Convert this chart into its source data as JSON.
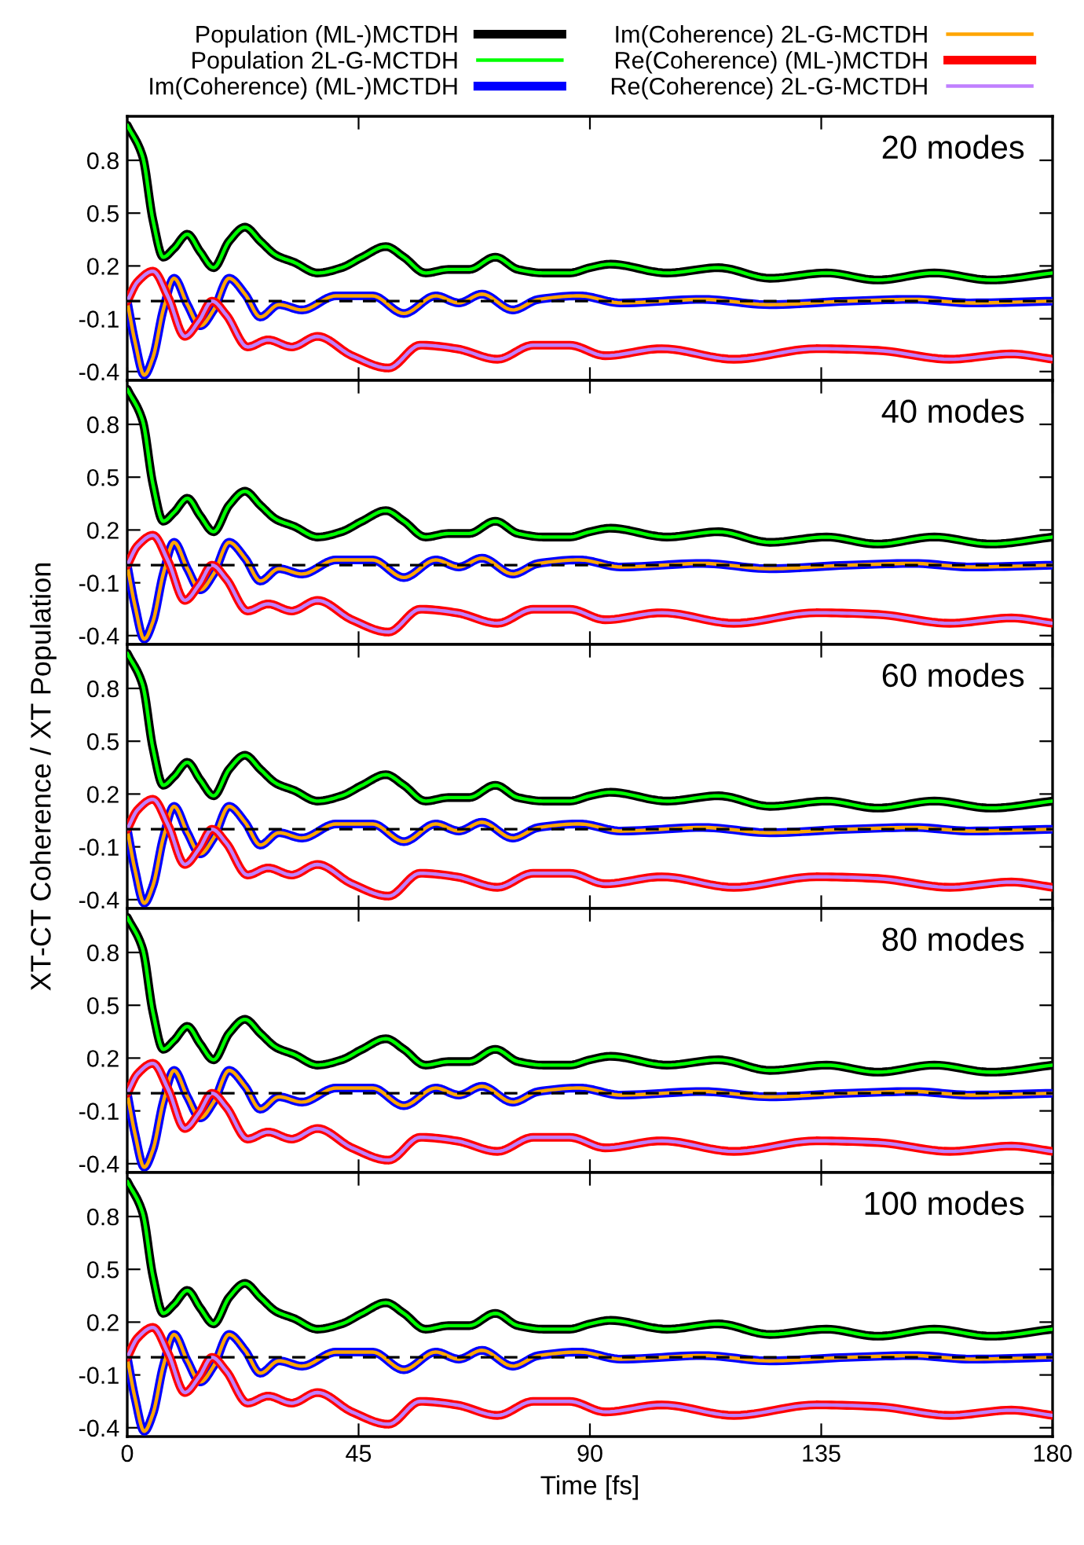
{
  "chart_data": [
    {
      "type": "line",
      "annotations": [
        "20 modes"
      ],
      "legend": "top",
      "tick_labels": "y",
      "grid": false,
      "line_style": "solid",
      "marker": "none",
      "xlim": [
        0,
        180
      ],
      "xticks": [
        0,
        45,
        90,
        135,
        180
      ],
      "ylim": [
        -0.45,
        1.05
      ],
      "yticks": [
        -0.4,
        -0.1,
        0.2,
        0.5,
        0.8
      ],
      "ref_lines": [
        {
          "axis": "y",
          "value": 0,
          "color": "#000000",
          "line_style": "dashed"
        }
      ],
      "series": [
        {
          "name": "Population (ML-)MCTDH",
          "color": "#000000",
          "x": [
            0,
            3,
            5,
            7,
            9.1,
            11.7,
            14.2,
            16.8,
            19.8,
            22.9,
            25.9,
            29,
            32.5,
            37,
            41.7,
            45.7,
            50.3,
            53.8,
            58,
            62.5,
            66.5,
            71.6,
            76,
            81,
            86,
            90,
            94,
            105,
            115,
            125,
            136,
            146,
            157,
            168,
            180
          ],
          "values": [
            1.0,
            0.82,
            0.46,
            0.25,
            0.3,
            0.38,
            0.28,
            0.19,
            0.34,
            0.42,
            0.34,
            0.26,
            0.22,
            0.16,
            0.19,
            0.25,
            0.31,
            0.25,
            0.16,
            0.18,
            0.18,
            0.25,
            0.18,
            0.16,
            0.16,
            0.19,
            0.21,
            0.16,
            0.19,
            0.13,
            0.16,
            0.12,
            0.16,
            0.12,
            0.16
          ]
        },
        {
          "name": "Population 2L-G-MCTDH",
          "color": "#00ff00",
          "x": [
            0,
            3,
            5,
            7,
            9.1,
            11.7,
            14.2,
            16.8,
            19.8,
            22.9,
            25.9,
            29,
            32.5,
            37,
            41.7,
            45.7,
            50.3,
            53.8,
            58,
            62.5,
            66.5,
            71.6,
            76,
            81,
            86,
            90,
            94,
            105,
            115,
            125,
            136,
            146,
            157,
            168,
            180
          ],
          "values": [
            1.0,
            0.82,
            0.46,
            0.25,
            0.3,
            0.38,
            0.28,
            0.19,
            0.34,
            0.42,
            0.34,
            0.26,
            0.22,
            0.16,
            0.19,
            0.25,
            0.31,
            0.25,
            0.16,
            0.18,
            0.18,
            0.25,
            0.18,
            0.16,
            0.16,
            0.19,
            0.21,
            0.16,
            0.19,
            0.13,
            0.16,
            0.12,
            0.16,
            0.12,
            0.16
          ]
        },
        {
          "name": "Im(Coherence) (ML-)MCTDH",
          "color": "#0000ff",
          "x": [
            0,
            1.5,
            3.3,
            5,
            7,
            9.1,
            11.7,
            14.2,
            16.8,
            19.8,
            22.9,
            25.9,
            29.5,
            34,
            40.6,
            47.7,
            53.8,
            60,
            64.5,
            69,
            75,
            80,
            88,
            96,
            112,
            125,
            140,
            153,
            164,
            180
          ],
          "values": [
            0,
            -0.23,
            -0.42,
            -0.32,
            -0.05,
            0.13,
            -0.02,
            -0.14,
            -0.05,
            0.13,
            0.04,
            -0.09,
            -0.02,
            -0.05,
            0.03,
            0.03,
            -0.07,
            0.03,
            -0.01,
            0.04,
            -0.05,
            0.01,
            0.03,
            -0.01,
            0.01,
            -0.02,
            0.0,
            0.01,
            -0.01,
            0.0
          ]
        },
        {
          "name": "Im(Coherence) 2L-G-MCTDH",
          "color": "#ffa500",
          "x": [
            0,
            1.5,
            3.3,
            5,
            7,
            9.1,
            11.7,
            14.2,
            16.8,
            19.8,
            22.9,
            25.9,
            29.5,
            34,
            40.6,
            47.7,
            53.8,
            60,
            64.5,
            69,
            75,
            80,
            88,
            96,
            112,
            125,
            140,
            153,
            164,
            180
          ],
          "values": [
            0,
            -0.23,
            -0.42,
            -0.32,
            -0.05,
            0.13,
            -0.02,
            -0.14,
            -0.05,
            0.13,
            0.04,
            -0.09,
            -0.02,
            -0.05,
            0.03,
            0.03,
            -0.07,
            0.03,
            -0.01,
            0.04,
            -0.05,
            0.01,
            0.03,
            -0.01,
            0.01,
            -0.02,
            0.0,
            0.01,
            -0.01,
            0.0
          ]
        },
        {
          "name": "Re(Coherence) (ML-)MCTDH",
          "color": "#ff0000",
          "x": [
            0,
            2,
            5,
            8,
            11.2,
            14,
            16.5,
            19.3,
            23.4,
            27.4,
            32,
            37,
            43.7,
            50.8,
            57,
            64,
            72,
            79,
            86,
            93,
            104,
            118,
            134,
            146,
            160,
            172,
            180
          ],
          "values": [
            0,
            0.11,
            0.17,
            0.02,
            -0.2,
            -0.11,
            0.0,
            -0.08,
            -0.26,
            -0.22,
            -0.26,
            -0.2,
            -0.31,
            -0.38,
            -0.25,
            -0.27,
            -0.33,
            -0.25,
            -0.25,
            -0.31,
            -0.27,
            -0.33,
            -0.27,
            -0.28,
            -0.33,
            -0.3,
            -0.33
          ]
        },
        {
          "name": "Re(Coherence) 2L-G-MCTDH",
          "color": "#c080ff",
          "x": [
            0,
            2,
            5,
            8,
            11.2,
            14,
            16.5,
            19.3,
            23.4,
            27.4,
            32,
            37,
            43.7,
            50.8,
            57,
            64,
            72,
            79,
            86,
            93,
            104,
            118,
            134,
            146,
            160,
            172,
            180
          ],
          "values": [
            0,
            0.11,
            0.17,
            0.02,
            -0.2,
            -0.11,
            0.0,
            -0.08,
            -0.26,
            -0.22,
            -0.26,
            -0.2,
            -0.31,
            -0.38,
            -0.25,
            -0.27,
            -0.33,
            -0.25,
            -0.25,
            -0.31,
            -0.27,
            -0.33,
            -0.27,
            -0.28,
            -0.33,
            -0.3,
            -0.33
          ]
        }
      ]
    },
    {
      "type": "line",
      "annotations": [
        "40 modes"
      ],
      "tick_labels": "y",
      "grid": false,
      "line_style": "solid",
      "marker": "none",
      "xlim": [
        0,
        180
      ],
      "xticks": [
        0,
        45,
        90,
        135,
        180
      ],
      "ylim": [
        -0.45,
        1.05
      ],
      "yticks": [
        -0.4,
        -0.1,
        0.2,
        0.5,
        0.8
      ],
      "ref_lines": [
        {
          "axis": "y",
          "value": 0,
          "color": "#000000",
          "line_style": "dashed"
        }
      ],
      "series": [
        {
          "color": "#000000",
          "x": [
            0,
            3,
            5,
            7,
            9.1,
            11.7,
            14.2,
            16.8,
            19.8,
            22.9,
            25.9,
            29,
            32.5,
            37,
            41.7,
            45.7,
            50.3,
            53.8,
            58,
            62.5,
            66.5,
            71.6,
            76,
            81,
            86,
            90,
            94,
            105,
            115,
            125,
            136,
            146,
            157,
            168,
            180
          ],
          "values": [
            1.0,
            0.82,
            0.46,
            0.25,
            0.3,
            0.38,
            0.28,
            0.19,
            0.34,
            0.42,
            0.34,
            0.26,
            0.22,
            0.16,
            0.19,
            0.25,
            0.31,
            0.25,
            0.16,
            0.18,
            0.18,
            0.25,
            0.18,
            0.16,
            0.16,
            0.19,
            0.21,
            0.16,
            0.19,
            0.13,
            0.16,
            0.12,
            0.16,
            0.12,
            0.16
          ]
        },
        {
          "color": "#00ff00",
          "x": [
            0,
            3,
            5,
            7,
            9.1,
            11.7,
            14.2,
            16.8,
            19.8,
            22.9,
            25.9,
            29,
            32.5,
            37,
            41.7,
            45.7,
            50.3,
            53.8,
            58,
            62.5,
            66.5,
            71.6,
            76,
            81,
            86,
            90,
            94,
            105,
            115,
            125,
            136,
            146,
            157,
            168,
            180
          ],
          "values": [
            1.0,
            0.82,
            0.46,
            0.25,
            0.3,
            0.38,
            0.28,
            0.19,
            0.34,
            0.42,
            0.34,
            0.26,
            0.22,
            0.16,
            0.19,
            0.25,
            0.31,
            0.25,
            0.16,
            0.18,
            0.18,
            0.25,
            0.18,
            0.16,
            0.16,
            0.19,
            0.21,
            0.16,
            0.19,
            0.13,
            0.16,
            0.12,
            0.16,
            0.12,
            0.16
          ]
        },
        {
          "color": "#0000ff",
          "x": [
            0,
            1.5,
            3.3,
            5,
            7,
            9.1,
            11.7,
            14.2,
            16.8,
            19.8,
            22.9,
            25.9,
            29.5,
            34,
            40.6,
            47.7,
            53.8,
            60,
            64.5,
            69,
            75,
            80,
            88,
            96,
            112,
            125,
            140,
            153,
            164,
            180
          ],
          "values": [
            0,
            -0.23,
            -0.42,
            -0.32,
            -0.05,
            0.13,
            -0.02,
            -0.14,
            -0.05,
            0.13,
            0.04,
            -0.09,
            -0.02,
            -0.05,
            0.03,
            0.03,
            -0.07,
            0.03,
            -0.01,
            0.04,
            -0.05,
            0.01,
            0.03,
            -0.01,
            0.01,
            -0.02,
            0.0,
            0.01,
            -0.01,
            0.0
          ]
        },
        {
          "color": "#ffa500",
          "x": [
            0,
            1.5,
            3.3,
            5,
            7,
            9.1,
            11.7,
            14.2,
            16.8,
            19.8,
            22.9,
            25.9,
            29.5,
            34,
            40.6,
            47.7,
            53.8,
            60,
            64.5,
            69,
            75,
            80,
            88,
            96,
            112,
            125,
            140,
            153,
            164,
            180
          ],
          "values": [
            0,
            -0.23,
            -0.42,
            -0.32,
            -0.05,
            0.13,
            -0.02,
            -0.14,
            -0.05,
            0.13,
            0.04,
            -0.09,
            -0.02,
            -0.05,
            0.03,
            0.03,
            -0.07,
            0.03,
            -0.01,
            0.04,
            -0.05,
            0.01,
            0.03,
            -0.01,
            0.01,
            -0.02,
            0.0,
            0.01,
            -0.01,
            0.0
          ]
        },
        {
          "color": "#ff0000",
          "x": [
            0,
            2,
            5,
            8,
            11.2,
            14,
            16.5,
            19.3,
            23.4,
            27.4,
            32,
            37,
            43.7,
            50.8,
            57,
            64,
            72,
            79,
            86,
            93,
            104,
            118,
            134,
            146,
            160,
            172,
            180
          ],
          "values": [
            0,
            0.11,
            0.17,
            0.02,
            -0.2,
            -0.11,
            0.0,
            -0.08,
            -0.26,
            -0.22,
            -0.26,
            -0.2,
            -0.31,
            -0.38,
            -0.25,
            -0.27,
            -0.33,
            -0.25,
            -0.25,
            -0.31,
            -0.27,
            -0.33,
            -0.27,
            -0.28,
            -0.33,
            -0.3,
            -0.33
          ]
        },
        {
          "color": "#c080ff",
          "x": [
            0,
            2,
            5,
            8,
            11.2,
            14,
            16.5,
            19.3,
            23.4,
            27.4,
            32,
            37,
            43.7,
            50.8,
            57,
            64,
            72,
            79,
            86,
            93,
            104,
            118,
            134,
            146,
            160,
            172,
            180
          ],
          "values": [
            0,
            0.11,
            0.17,
            0.02,
            -0.2,
            -0.11,
            0.0,
            -0.08,
            -0.26,
            -0.22,
            -0.26,
            -0.2,
            -0.31,
            -0.38,
            -0.25,
            -0.27,
            -0.33,
            -0.25,
            -0.25,
            -0.31,
            -0.27,
            -0.33,
            -0.27,
            -0.28,
            -0.33,
            -0.3,
            -0.33
          ]
        }
      ]
    },
    {
      "type": "line",
      "annotations": [
        "60 modes"
      ],
      "ylabel": "XT-CT Coherence / XT Population",
      "tick_labels": "y",
      "grid": false,
      "line_style": "solid",
      "marker": "none",
      "xlim": [
        0,
        180
      ],
      "xticks": [
        0,
        45,
        90,
        135,
        180
      ],
      "ylim": [
        -0.45,
        1.05
      ],
      "yticks": [
        -0.4,
        -0.1,
        0.2,
        0.5,
        0.8
      ],
      "ref_lines": [
        {
          "axis": "y",
          "value": 0,
          "color": "#000000",
          "line_style": "dashed"
        }
      ],
      "series": [
        {
          "color": "#000000",
          "x": [
            0,
            3,
            5,
            7,
            9.1,
            11.7,
            14.2,
            16.8,
            19.8,
            22.9,
            25.9,
            29,
            32.5,
            37,
            41.7,
            45.7,
            50.3,
            53.8,
            58,
            62.5,
            66.5,
            71.6,
            76,
            81,
            86,
            90,
            94,
            105,
            115,
            125,
            136,
            146,
            157,
            168,
            180
          ],
          "values": [
            1.0,
            0.82,
            0.46,
            0.25,
            0.3,
            0.38,
            0.28,
            0.19,
            0.34,
            0.42,
            0.34,
            0.26,
            0.22,
            0.16,
            0.19,
            0.25,
            0.31,
            0.25,
            0.16,
            0.18,
            0.18,
            0.25,
            0.18,
            0.16,
            0.16,
            0.19,
            0.21,
            0.16,
            0.19,
            0.13,
            0.16,
            0.12,
            0.16,
            0.12,
            0.16
          ]
        },
        {
          "color": "#00ff00",
          "x": [
            0,
            3,
            5,
            7,
            9.1,
            11.7,
            14.2,
            16.8,
            19.8,
            22.9,
            25.9,
            29,
            32.5,
            37,
            41.7,
            45.7,
            50.3,
            53.8,
            58,
            62.5,
            66.5,
            71.6,
            76,
            81,
            86,
            90,
            94,
            105,
            115,
            125,
            136,
            146,
            157,
            168,
            180
          ],
          "values": [
            1.0,
            0.82,
            0.46,
            0.25,
            0.3,
            0.38,
            0.28,
            0.19,
            0.34,
            0.42,
            0.34,
            0.26,
            0.22,
            0.16,
            0.19,
            0.25,
            0.31,
            0.25,
            0.16,
            0.18,
            0.18,
            0.25,
            0.18,
            0.16,
            0.16,
            0.19,
            0.21,
            0.16,
            0.19,
            0.13,
            0.16,
            0.12,
            0.16,
            0.12,
            0.16
          ]
        },
        {
          "color": "#0000ff",
          "x": [
            0,
            1.5,
            3.3,
            5,
            7,
            9.1,
            11.7,
            14.2,
            16.8,
            19.8,
            22.9,
            25.9,
            29.5,
            34,
            40.6,
            47.7,
            53.8,
            60,
            64.5,
            69,
            75,
            80,
            88,
            96,
            112,
            125,
            140,
            153,
            164,
            180
          ],
          "values": [
            0,
            -0.23,
            -0.42,
            -0.32,
            -0.05,
            0.13,
            -0.02,
            -0.14,
            -0.05,
            0.13,
            0.04,
            -0.09,
            -0.02,
            -0.05,
            0.03,
            0.03,
            -0.07,
            0.03,
            -0.01,
            0.04,
            -0.05,
            0.01,
            0.03,
            -0.01,
            0.01,
            -0.02,
            0.0,
            0.01,
            -0.01,
            0.0
          ]
        },
        {
          "color": "#ffa500",
          "x": [
            0,
            1.5,
            3.3,
            5,
            7,
            9.1,
            11.7,
            14.2,
            16.8,
            19.8,
            22.9,
            25.9,
            29.5,
            34,
            40.6,
            47.7,
            53.8,
            60,
            64.5,
            69,
            75,
            80,
            88,
            96,
            112,
            125,
            140,
            153,
            164,
            180
          ],
          "values": [
            0,
            -0.23,
            -0.42,
            -0.32,
            -0.05,
            0.13,
            -0.02,
            -0.14,
            -0.05,
            0.13,
            0.04,
            -0.09,
            -0.02,
            -0.05,
            0.03,
            0.03,
            -0.07,
            0.03,
            -0.01,
            0.04,
            -0.05,
            0.01,
            0.03,
            -0.01,
            0.01,
            -0.02,
            0.0,
            0.01,
            -0.01,
            0.0
          ]
        },
        {
          "color": "#ff0000",
          "x": [
            0,
            2,
            5,
            8,
            11.2,
            14,
            16.5,
            19.3,
            23.4,
            27.4,
            32,
            37,
            43.7,
            50.8,
            57,
            64,
            72,
            79,
            86,
            93,
            104,
            118,
            134,
            146,
            160,
            172,
            180
          ],
          "values": [
            0,
            0.11,
            0.17,
            0.02,
            -0.2,
            -0.11,
            0.0,
            -0.08,
            -0.26,
            -0.22,
            -0.26,
            -0.2,
            -0.31,
            -0.38,
            -0.25,
            -0.27,
            -0.33,
            -0.25,
            -0.25,
            -0.31,
            -0.27,
            -0.33,
            -0.27,
            -0.28,
            -0.33,
            -0.3,
            -0.33
          ]
        },
        {
          "color": "#c080ff",
          "x": [
            0,
            2,
            5,
            8,
            11.2,
            14,
            16.5,
            19.3,
            23.4,
            27.4,
            32,
            37,
            43.7,
            50.8,
            57,
            64,
            72,
            79,
            86,
            93,
            104,
            118,
            134,
            146,
            160,
            172,
            180
          ],
          "values": [
            0,
            0.11,
            0.17,
            0.02,
            -0.2,
            -0.11,
            0.0,
            -0.08,
            -0.26,
            -0.22,
            -0.26,
            -0.2,
            -0.31,
            -0.38,
            -0.25,
            -0.27,
            -0.33,
            -0.25,
            -0.25,
            -0.31,
            -0.27,
            -0.33,
            -0.27,
            -0.28,
            -0.33,
            -0.3,
            -0.33
          ]
        }
      ]
    },
    {
      "type": "line",
      "annotations": [
        "80 modes"
      ],
      "tick_labels": "y",
      "grid": false,
      "line_style": "solid",
      "marker": "none",
      "xlim": [
        0,
        180
      ],
      "xticks": [
        0,
        45,
        90,
        135,
        180
      ],
      "ylim": [
        -0.45,
        1.05
      ],
      "yticks": [
        -0.4,
        -0.1,
        0.2,
        0.5,
        0.8
      ],
      "ref_lines": [
        {
          "axis": "y",
          "value": 0,
          "color": "#000000",
          "line_style": "dashed"
        }
      ],
      "series": [
        {
          "color": "#000000",
          "x": [
            0,
            3,
            5,
            7,
            9.1,
            11.7,
            14.2,
            16.8,
            19.8,
            22.9,
            25.9,
            29,
            32.5,
            37,
            41.7,
            45.7,
            50.3,
            53.8,
            58,
            62.5,
            66.5,
            71.6,
            76,
            81,
            86,
            90,
            94,
            105,
            115,
            125,
            136,
            146,
            157,
            168,
            180
          ],
          "values": [
            1.0,
            0.82,
            0.46,
            0.25,
            0.3,
            0.38,
            0.28,
            0.19,
            0.34,
            0.42,
            0.34,
            0.26,
            0.22,
            0.16,
            0.19,
            0.25,
            0.31,
            0.25,
            0.16,
            0.18,
            0.18,
            0.25,
            0.18,
            0.16,
            0.16,
            0.19,
            0.21,
            0.16,
            0.19,
            0.13,
            0.16,
            0.12,
            0.16,
            0.12,
            0.16
          ]
        },
        {
          "color": "#00ff00",
          "x": [
            0,
            3,
            5,
            7,
            9.1,
            11.7,
            14.2,
            16.8,
            19.8,
            22.9,
            25.9,
            29,
            32.5,
            37,
            41.7,
            45.7,
            50.3,
            53.8,
            58,
            62.5,
            66.5,
            71.6,
            76,
            81,
            86,
            90,
            94,
            105,
            115,
            125,
            136,
            146,
            157,
            168,
            180
          ],
          "values": [
            1.0,
            0.82,
            0.46,
            0.25,
            0.3,
            0.38,
            0.28,
            0.19,
            0.34,
            0.42,
            0.34,
            0.26,
            0.22,
            0.16,
            0.19,
            0.25,
            0.31,
            0.25,
            0.16,
            0.18,
            0.18,
            0.25,
            0.18,
            0.16,
            0.16,
            0.19,
            0.21,
            0.16,
            0.19,
            0.13,
            0.16,
            0.12,
            0.16,
            0.12,
            0.16
          ]
        },
        {
          "color": "#0000ff",
          "x": [
            0,
            1.5,
            3.3,
            5,
            7,
            9.1,
            11.7,
            14.2,
            16.8,
            19.8,
            22.9,
            25.9,
            29.5,
            34,
            40.6,
            47.7,
            53.8,
            60,
            64.5,
            69,
            75,
            80,
            88,
            96,
            112,
            125,
            140,
            153,
            164,
            180
          ],
          "values": [
            0,
            -0.23,
            -0.42,
            -0.32,
            -0.05,
            0.13,
            -0.02,
            -0.14,
            -0.05,
            0.13,
            0.04,
            -0.09,
            -0.02,
            -0.05,
            0.03,
            0.03,
            -0.07,
            0.03,
            -0.01,
            0.04,
            -0.05,
            0.01,
            0.03,
            -0.01,
            0.01,
            -0.02,
            0.0,
            0.01,
            -0.01,
            0.0
          ]
        },
        {
          "color": "#ffa500",
          "x": [
            0,
            1.5,
            3.3,
            5,
            7,
            9.1,
            11.7,
            14.2,
            16.8,
            19.8,
            22.9,
            25.9,
            29.5,
            34,
            40.6,
            47.7,
            53.8,
            60,
            64.5,
            69,
            75,
            80,
            88,
            96,
            112,
            125,
            140,
            153,
            164,
            180
          ],
          "values": [
            0,
            -0.23,
            -0.42,
            -0.32,
            -0.05,
            0.13,
            -0.02,
            -0.14,
            -0.05,
            0.13,
            0.04,
            -0.09,
            -0.02,
            -0.05,
            0.03,
            0.03,
            -0.07,
            0.03,
            -0.01,
            0.04,
            -0.05,
            0.01,
            0.03,
            -0.01,
            0.01,
            -0.02,
            0.0,
            0.01,
            -0.01,
            0.0
          ]
        },
        {
          "color": "#ff0000",
          "x": [
            0,
            2,
            5,
            8,
            11.2,
            14,
            16.5,
            19.3,
            23.4,
            27.4,
            32,
            37,
            43.7,
            50.8,
            57,
            64,
            72,
            79,
            86,
            93,
            104,
            118,
            134,
            146,
            160,
            172,
            180
          ],
          "values": [
            0,
            0.11,
            0.17,
            0.02,
            -0.2,
            -0.11,
            0.0,
            -0.08,
            -0.26,
            -0.22,
            -0.26,
            -0.2,
            -0.31,
            -0.38,
            -0.25,
            -0.27,
            -0.33,
            -0.25,
            -0.25,
            -0.31,
            -0.27,
            -0.33,
            -0.27,
            -0.28,
            -0.33,
            -0.3,
            -0.33
          ]
        },
        {
          "color": "#c080ff",
          "x": [
            0,
            2,
            5,
            8,
            11.2,
            14,
            16.5,
            19.3,
            23.4,
            27.4,
            32,
            37,
            43.7,
            50.8,
            57,
            64,
            72,
            79,
            86,
            93,
            104,
            118,
            134,
            146,
            160,
            172,
            180
          ],
          "values": [
            0,
            0.11,
            0.17,
            0.02,
            -0.2,
            -0.11,
            0.0,
            -0.08,
            -0.26,
            -0.22,
            -0.26,
            -0.2,
            -0.31,
            -0.38,
            -0.25,
            -0.27,
            -0.33,
            -0.25,
            -0.25,
            -0.31,
            -0.27,
            -0.33,
            -0.27,
            -0.28,
            -0.33,
            -0.3,
            -0.33
          ]
        }
      ]
    },
    {
      "type": "line",
      "annotations": [
        "100 modes"
      ],
      "xlabel": "Time [fs]",
      "grid": false,
      "line_style": "solid",
      "marker": "none",
      "xlim": [
        0,
        180
      ],
      "xticks": [
        0,
        45,
        90,
        135,
        180
      ],
      "ylim": [
        -0.45,
        1.05
      ],
      "yticks": [
        -0.4,
        -0.1,
        0.2,
        0.5,
        0.8
      ],
      "ref_lines": [
        {
          "axis": "y",
          "value": 0,
          "color": "#000000",
          "line_style": "dashed"
        }
      ],
      "series": [
        {
          "color": "#000000",
          "x": [
            0,
            3,
            5,
            7,
            9.1,
            11.7,
            14.2,
            16.8,
            19.8,
            22.9,
            25.9,
            29,
            32.5,
            37,
            41.7,
            45.7,
            50.3,
            53.8,
            58,
            62.5,
            66.5,
            71.6,
            76,
            81,
            86,
            90,
            94,
            105,
            115,
            125,
            136,
            146,
            157,
            168,
            180
          ],
          "values": [
            1.0,
            0.82,
            0.46,
            0.25,
            0.3,
            0.38,
            0.28,
            0.19,
            0.34,
            0.42,
            0.34,
            0.26,
            0.22,
            0.16,
            0.19,
            0.25,
            0.31,
            0.25,
            0.16,
            0.18,
            0.18,
            0.25,
            0.18,
            0.16,
            0.16,
            0.19,
            0.21,
            0.16,
            0.19,
            0.13,
            0.16,
            0.12,
            0.16,
            0.12,
            0.16
          ]
        },
        {
          "color": "#00ff00",
          "x": [
            0,
            3,
            5,
            7,
            9.1,
            11.7,
            14.2,
            16.8,
            19.8,
            22.9,
            25.9,
            29,
            32.5,
            37,
            41.7,
            45.7,
            50.3,
            53.8,
            58,
            62.5,
            66.5,
            71.6,
            76,
            81,
            86,
            90,
            94,
            105,
            115,
            125,
            136,
            146,
            157,
            168,
            180
          ],
          "values": [
            1.0,
            0.82,
            0.46,
            0.25,
            0.3,
            0.38,
            0.28,
            0.19,
            0.34,
            0.42,
            0.34,
            0.26,
            0.22,
            0.16,
            0.19,
            0.25,
            0.31,
            0.25,
            0.16,
            0.18,
            0.18,
            0.25,
            0.18,
            0.16,
            0.16,
            0.19,
            0.21,
            0.16,
            0.19,
            0.13,
            0.16,
            0.12,
            0.16,
            0.12,
            0.16
          ]
        },
        {
          "color": "#0000ff",
          "x": [
            0,
            1.5,
            3.3,
            5,
            7,
            9.1,
            11.7,
            14.2,
            16.8,
            19.8,
            22.9,
            25.9,
            29.5,
            34,
            40.6,
            47.7,
            53.8,
            60,
            64.5,
            69,
            75,
            80,
            88,
            96,
            112,
            125,
            140,
            153,
            164,
            180
          ],
          "values": [
            0,
            -0.23,
            -0.42,
            -0.32,
            -0.05,
            0.13,
            -0.02,
            -0.14,
            -0.05,
            0.13,
            0.04,
            -0.09,
            -0.02,
            -0.05,
            0.03,
            0.03,
            -0.07,
            0.03,
            -0.01,
            0.04,
            -0.05,
            0.01,
            0.03,
            -0.01,
            0.01,
            -0.02,
            0.0,
            0.01,
            -0.01,
            0.0
          ]
        },
        {
          "color": "#ffa500",
          "x": [
            0,
            1.5,
            3.3,
            5,
            7,
            9.1,
            11.7,
            14.2,
            16.8,
            19.8,
            22.9,
            25.9,
            29.5,
            34,
            40.6,
            47.7,
            53.8,
            60,
            64.5,
            69,
            75,
            80,
            88,
            96,
            112,
            125,
            140,
            153,
            164,
            180
          ],
          "values": [
            0,
            -0.23,
            -0.42,
            -0.32,
            -0.05,
            0.13,
            -0.02,
            -0.14,
            -0.05,
            0.13,
            0.04,
            -0.09,
            -0.02,
            -0.05,
            0.03,
            0.03,
            -0.07,
            0.03,
            -0.01,
            0.04,
            -0.05,
            0.01,
            0.03,
            -0.01,
            0.01,
            -0.02,
            0.0,
            0.01,
            -0.01,
            0.0
          ]
        },
        {
          "color": "#ff0000",
          "x": [
            0,
            2,
            5,
            8,
            11.2,
            14,
            16.5,
            19.3,
            23.4,
            27.4,
            32,
            37,
            43.7,
            50.8,
            57,
            64,
            72,
            79,
            86,
            93,
            104,
            118,
            134,
            146,
            160,
            172,
            180
          ],
          "values": [
            0,
            0.11,
            0.17,
            0.02,
            -0.2,
            -0.11,
            0.0,
            -0.08,
            -0.26,
            -0.22,
            -0.26,
            -0.2,
            -0.31,
            -0.38,
            -0.25,
            -0.27,
            -0.33,
            -0.25,
            -0.25,
            -0.31,
            -0.27,
            -0.33,
            -0.27,
            -0.28,
            -0.33,
            -0.3,
            -0.33
          ]
        },
        {
          "color": "#c080ff",
          "x": [
            0,
            2,
            5,
            8,
            11.2,
            14,
            16.5,
            19.3,
            23.4,
            27.4,
            32,
            37,
            43.7,
            50.8,
            57,
            64,
            72,
            79,
            86,
            93,
            104,
            118,
            134,
            146,
            160,
            172,
            180
          ],
          "values": [
            0,
            0.11,
            0.17,
            0.02,
            -0.2,
            -0.11,
            0.0,
            -0.08,
            -0.26,
            -0.22,
            -0.26,
            -0.2,
            -0.31,
            -0.38,
            -0.25,
            -0.27,
            -0.33,
            -0.25,
            -0.25,
            -0.31,
            -0.27,
            -0.33,
            -0.27,
            -0.28,
            -0.33,
            -0.3,
            -0.33
          ]
        }
      ]
    }
  ]
}
